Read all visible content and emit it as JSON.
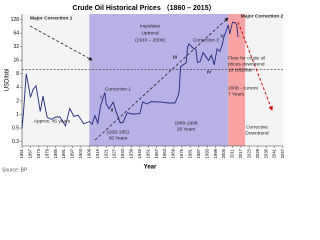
{
  "chart_data": {
    "type": "line",
    "title": "Crude Oil Historical Prices （1860 – 2015）",
    "x_label": "Year",
    "y_label": "USD/bbl",
    "source": "Source: BP",
    "log_scale": true,
    "grid": false,
    "color": "#1f2a7a",
    "x": [
      1861,
      1862,
      1864,
      1866,
      1867,
      1869,
      1871,
      1873,
      1874,
      1876,
      1878,
      1879,
      1882,
      1885,
      1888,
      1892,
      1895,
      1898,
      1901,
      1905,
      1909,
      1911,
      1913,
      1915,
      1917,
      1920,
      1921,
      1923,
      1926,
      1928,
      1931,
      1933,
      1936,
      1940,
      1945,
      1947,
      1950,
      1953,
      1957,
      1960,
      1965,
      1970,
      1972,
      1973,
      1974,
      1978,
      1979,
      1980,
      1983,
      1985,
      1986,
      1988,
      1990,
      1992,
      1994,
      1996,
      1998,
      2000,
      2002,
      2004,
      2005,
      2006,
      2008,
      2009,
      2011,
      2013,
      2014,
      2015
    ],
    "values": [
      0.49,
      1.05,
      8.06,
      3.74,
      2.41,
      3.64,
      4.34,
      1.83,
      1.17,
      2.56,
      1.19,
      0.86,
      0.78,
      0.88,
      0.88,
      0.56,
      1.36,
      0.91,
      0.96,
      0.62,
      0.7,
      0.61,
      0.95,
      0.64,
      1.56,
      3.07,
      1.73,
      1.34,
      1.88,
      1.17,
      0.65,
      0.67,
      1.09,
      1.02,
      1.05,
      1.9,
      1.71,
      1.93,
      1.9,
      1.9,
      1.8,
      1.8,
      2.48,
      3.29,
      11.58,
      14.02,
      31.61,
      36.83,
      29.55,
      27.56,
      14.43,
      14.92,
      23.73,
      19.32,
      15.82,
      20.67,
      12.72,
      28.5,
      25.02,
      38.27,
      54.52,
      65.14,
      97.26,
      61.67,
      111.26,
      108.66,
      98.95,
      52.39
    ],
    "xlim": [
      1861,
      2047
    ],
    "xticks": [
      1861,
      1867,
      1873,
      1879,
      1885,
      1891,
      1897,
      1903,
      1909,
      1915,
      1921,
      1927,
      1933,
      1939,
      1945,
      1951,
      1957,
      1963,
      1969,
      1975,
      1981,
      1987,
      1993,
      1999,
      2005,
      2011,
      2017,
      2023,
      2029,
      2035,
      2041,
      2047
    ],
    "ylim": [
      0.2,
      170
    ],
    "yticks": [
      {
        "value": 0.25,
        "label": "0.3"
      },
      0.5,
      1,
      2,
      4,
      8,
      16,
      32,
      64,
      128
    ],
    "floor": 10,
    "shaded_regions": [
      {
        "from": 1909,
        "to": 2008,
        "color": "#b8b1e6"
      },
      {
        "from": 2008,
        "to": 2020,
        "color": "#f7a3a3"
      }
    ],
    "annotations": [
      "Major Correction 1",
      "Impulsive",
      "Uptrend",
      "(1910 – 2008)",
      "Correction 2",
      "Major Correction 2",
      "Floor for crude oil",
      "prices downtrend",
      "10 USD/bbl",
      "2008 - current",
      "7 Years",
      "Corrective",
      "Downtrend",
      "Approx. 45 years",
      "Correction 1",
      "1920-1951",
      "30 Years",
      "1980-1998",
      "18 Years",
      "I",
      "II",
      "III",
      "IV",
      "V"
    ]
  }
}
